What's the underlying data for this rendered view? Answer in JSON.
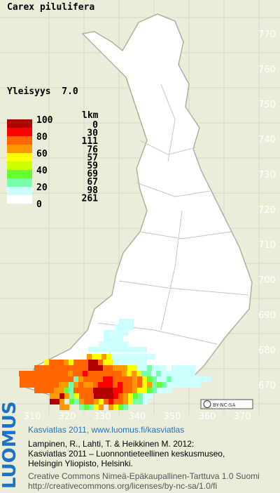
{
  "map": {
    "title": "Carex pilulifera",
    "frequency": "Yleisyys  7.0",
    "legend": {
      "scale_labels": [
        "100",
        "80",
        "60",
        "40",
        "20",
        "0"
      ],
      "count_header": "lkm",
      "counts": [
        "0",
        "30",
        "111",
        "76",
        "57",
        "59",
        "69",
        "67",
        "98",
        "261"
      ],
      "colors": [
        "#b00000",
        "#ff0000",
        "#ff6600",
        "#ff9900",
        "#ffff00",
        "#ccff00",
        "#66ff33",
        "#77ffaa",
        "#ccffff",
        "#ffffff"
      ]
    },
    "y_labels": [
      "770",
      "760",
      "750",
      "740",
      "730",
      "720",
      "710",
      "700",
      "690",
      "680",
      "670"
    ],
    "x_labels": [
      "310",
      "320",
      "330",
      "340",
      "350",
      "360",
      "370"
    ],
    "license_badge": "BY-NC-SA"
  },
  "footer": {
    "logo": "LUOMUS",
    "headline": "Kasviatlas 2011, www.luomus.fi/kasviatlas",
    "citation": [
      "Lampinen, R., Lahti, T. & Heikkinen M. 2012:",
      "Kasviatlas 2011 – Luonnontieteellinen keskusmuseo,",
      "Helsingin Yliopisto, Helsinki."
    ],
    "license": [
      "Creative Commons Nimeä-Epäkaupallinen-Tarttuva 1.0 Suomi",
      "http://creativecommons.org/licenses/by-nc-sa/1.0/fi"
    ]
  }
}
